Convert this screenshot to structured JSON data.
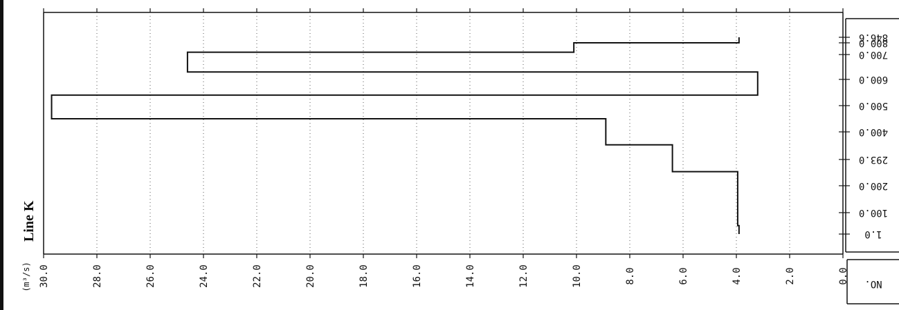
{
  "chart_data": {
    "type": "line",
    "title": "Line K",
    "unit_label": "(m³/s)",
    "no_label": "NO.",
    "step": true,
    "xlim": [
      0,
      30
    ],
    "x_ticks": [
      "0.0",
      "2.0",
      "4.0",
      "6.0",
      "8.0",
      "10.0",
      "12.0",
      "14.0",
      "16.0",
      "18.0",
      "20.0",
      "22.0",
      "24.0",
      "26.0",
      "28.0",
      "30.0"
    ],
    "y_ticks": [
      "1.0",
      "100.0",
      "200.0",
      "293.0",
      "400.0",
      "500.0",
      "600.0",
      "700.0",
      "800.0",
      "846.6"
    ],
    "series": [
      {
        "values": [
          {
            "from": 1.0,
            "to": 40.0,
            "value": 3.9
          },
          {
            "from": 40.0,
            "to": 250.0,
            "value": 3.95
          },
          {
            "from": 250.0,
            "to": 350.0,
            "value": 6.4
          },
          {
            "from": 350.0,
            "to": 450.0,
            "value": 8.9
          },
          {
            "from": 450.0,
            "to": 540.0,
            "value": 29.7
          },
          {
            "from": 540.0,
            "to": 630.0,
            "value": 3.2
          },
          {
            "from": 630.0,
            "to": 720.0,
            "value": 24.6
          },
          {
            "from": 720.0,
            "to": 800.0,
            "value": 10.1
          },
          {
            "from": 800.0,
            "to": 846.6,
            "value": 3.9
          }
        ]
      }
    ]
  }
}
